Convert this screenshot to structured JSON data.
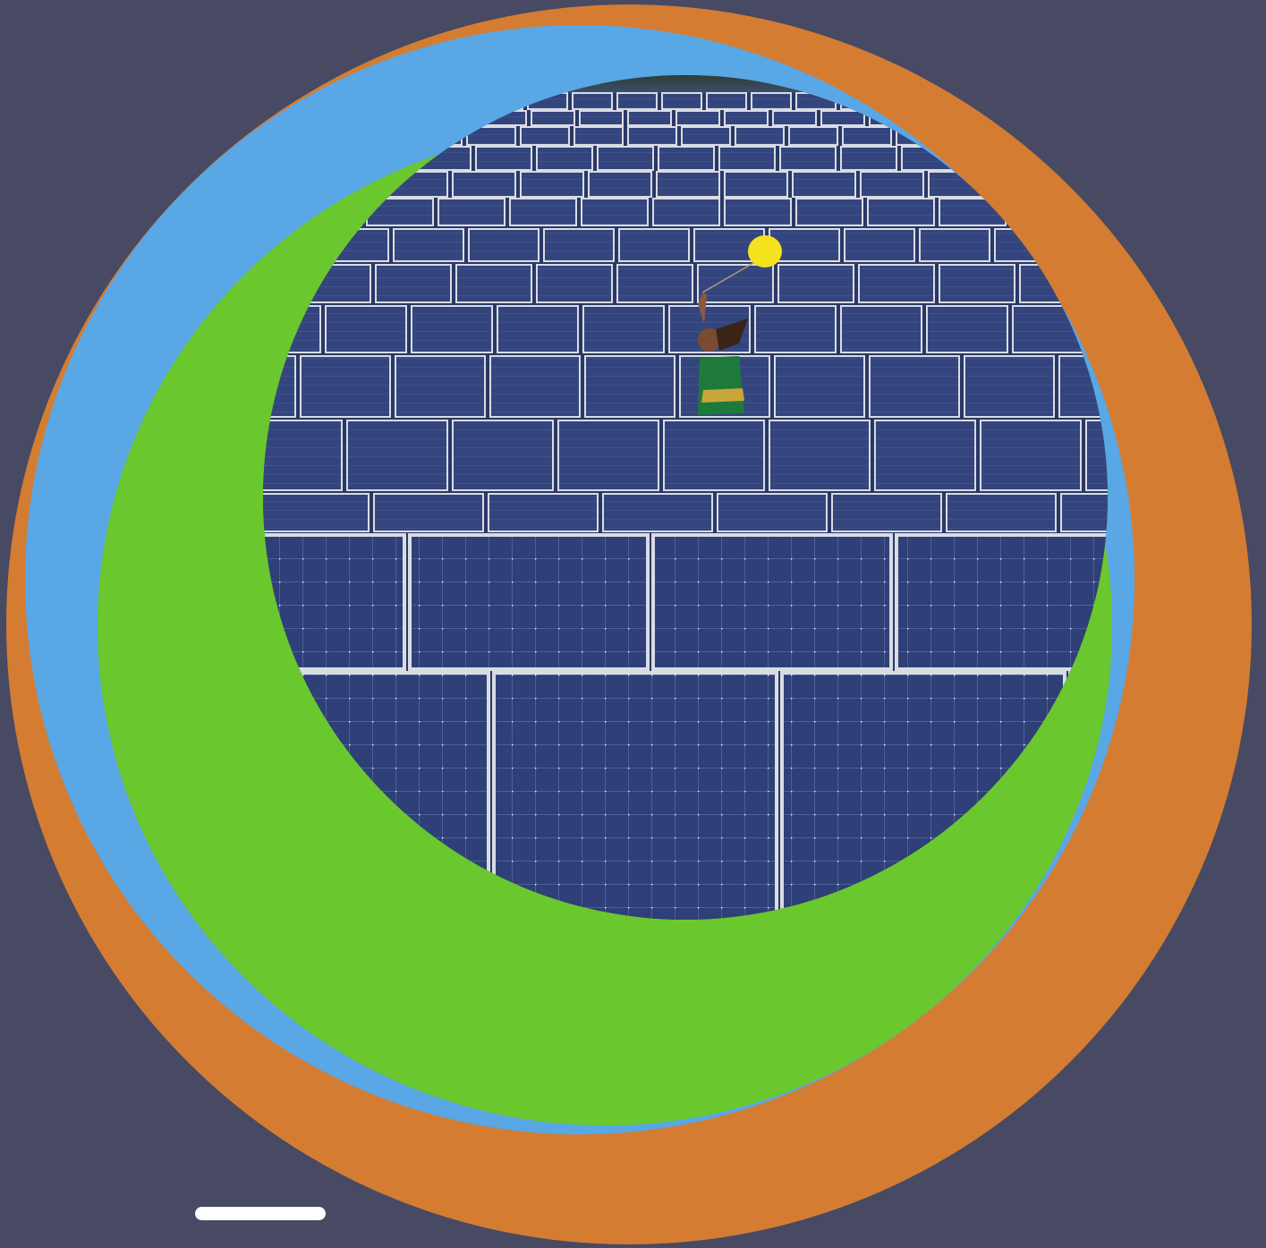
{
  "colors": {
    "background": "#474A62",
    "ring_outer": "#D57C33",
    "ring_middle": "#59A7E5",
    "ring_inner": "#6AC72E",
    "panel_blue": "#2E3D73",
    "panel_frame": "#D9DCE3",
    "balloon": "#F5E21E",
    "pill": "#FFFFFF"
  },
  "photo": {
    "subject": "child-with-yellow-balloon",
    "scene": "solar-panel-field"
  },
  "icons": [
    "slider-pill"
  ]
}
